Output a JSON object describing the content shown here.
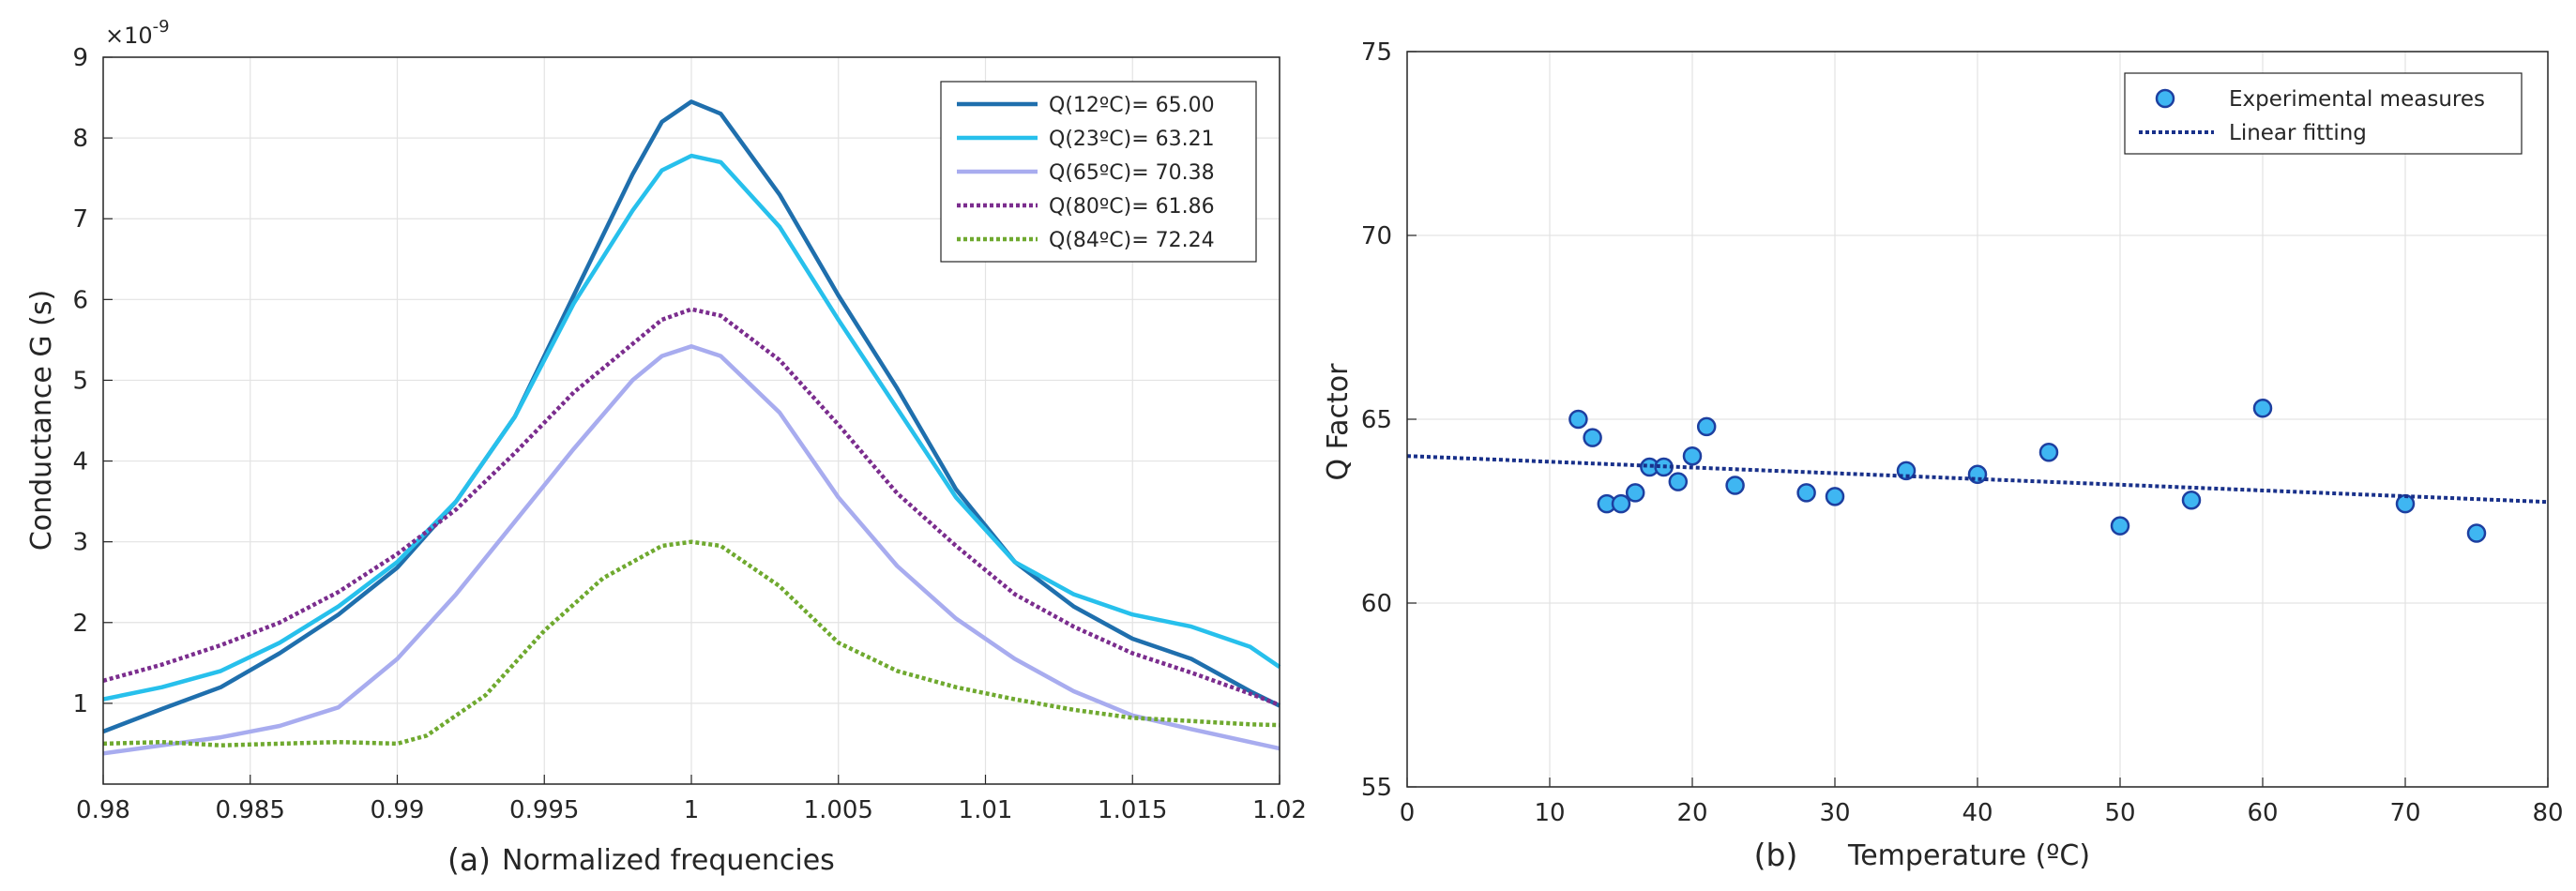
{
  "chart_data": [
    {
      "type": "line",
      "panel_label": "(a)",
      "xlabel": "Normalized frequencies",
      "ylabel": "Conductance G  (s)",
      "y_multiplier_base": "×10",
      "y_multiplier_exp": "-9",
      "xlim": [
        0.98,
        1.02
      ],
      "ylim": [
        0,
        9
      ],
      "xticks": [
        0.98,
        0.985,
        0.99,
        0.995,
        1,
        1.005,
        1.01,
        1.015,
        1.02
      ],
      "xtick_labels": [
        "0.98",
        "0.985",
        "0.99",
        "0.995",
        "1",
        "1.005",
        "1.01",
        "1.015",
        "1.02"
      ],
      "yticks": [
        1,
        2,
        3,
        4,
        5,
        6,
        7,
        8,
        9
      ],
      "ytick_labels": [
        "1",
        "2",
        "3",
        "4",
        "5",
        "6",
        "7",
        "8",
        "9"
      ],
      "grid": true,
      "legend_position": "top-right",
      "series": [
        {
          "name": "Q(12ºC)= 65.00",
          "color": "#1f6fad",
          "style": "solid",
          "points": [
            [
              0.98,
              0.65
            ],
            [
              0.982,
              0.93
            ],
            [
              0.984,
              1.2
            ],
            [
              0.986,
              1.62
            ],
            [
              0.988,
              2.1
            ],
            [
              0.99,
              2.68
            ],
            [
              0.992,
              3.5
            ],
            [
              0.994,
              4.55
            ],
            [
              0.996,
              6.05
            ],
            [
              0.998,
              7.55
            ],
            [
              0.999,
              8.2
            ],
            [
              1.0,
              8.45
            ],
            [
              1.001,
              8.3
            ],
            [
              1.003,
              7.3
            ],
            [
              1.005,
              6.05
            ],
            [
              1.007,
              4.9
            ],
            [
              1.009,
              3.65
            ],
            [
              1.011,
              2.75
            ],
            [
              1.013,
              2.2
            ],
            [
              1.015,
              1.8
            ],
            [
              1.017,
              1.55
            ],
            [
              1.019,
              1.15
            ],
            [
              1.02,
              0.97
            ]
          ]
        },
        {
          "name": "Q(23ºC)= 63.21",
          "color": "#27c0ec",
          "style": "solid",
          "points": [
            [
              0.98,
              1.05
            ],
            [
              0.982,
              1.2
            ],
            [
              0.984,
              1.4
            ],
            [
              0.986,
              1.75
            ],
            [
              0.988,
              2.2
            ],
            [
              0.99,
              2.75
            ],
            [
              0.992,
              3.5
            ],
            [
              0.994,
              4.55
            ],
            [
              0.996,
              5.95
            ],
            [
              0.998,
              7.1
            ],
            [
              0.999,
              7.6
            ],
            [
              1.0,
              7.78
            ],
            [
              1.001,
              7.7
            ],
            [
              1.003,
              6.9
            ],
            [
              1.005,
              5.75
            ],
            [
              1.007,
              4.65
            ],
            [
              1.009,
              3.55
            ],
            [
              1.011,
              2.75
            ],
            [
              1.013,
              2.35
            ],
            [
              1.015,
              2.1
            ],
            [
              1.017,
              1.95
            ],
            [
              1.019,
              1.7
            ],
            [
              1.02,
              1.45
            ]
          ]
        },
        {
          "name": "Q(65ºC)= 70.38",
          "color": "#a8acef",
          "style": "solid",
          "points": [
            [
              0.98,
              0.38
            ],
            [
              0.982,
              0.48
            ],
            [
              0.984,
              0.58
            ],
            [
              0.986,
              0.72
            ],
            [
              0.988,
              0.95
            ],
            [
              0.99,
              1.55
            ],
            [
              0.992,
              2.35
            ],
            [
              0.994,
              3.25
            ],
            [
              0.996,
              4.15
            ],
            [
              0.998,
              5.0
            ],
            [
              0.999,
              5.3
            ],
            [
              1.0,
              5.42
            ],
            [
              1.001,
              5.3
            ],
            [
              1.003,
              4.6
            ],
            [
              1.005,
              3.55
            ],
            [
              1.007,
              2.7
            ],
            [
              1.009,
              2.05
            ],
            [
              1.011,
              1.55
            ],
            [
              1.013,
              1.15
            ],
            [
              1.015,
              0.85
            ],
            [
              1.017,
              0.68
            ],
            [
              1.019,
              0.52
            ],
            [
              1.02,
              0.44
            ]
          ]
        },
        {
          "name": "Q(80ºC)= 61.86",
          "color": "#7b2d8e",
          "style": "dotted",
          "points": [
            [
              0.98,
              1.28
            ],
            [
              0.982,
              1.48
            ],
            [
              0.984,
              1.72
            ],
            [
              0.986,
              2.0
            ],
            [
              0.988,
              2.38
            ],
            [
              0.99,
              2.85
            ],
            [
              0.992,
              3.4
            ],
            [
              0.994,
              4.1
            ],
            [
              0.996,
              4.85
            ],
            [
              0.998,
              5.45
            ],
            [
              0.999,
              5.75
            ],
            [
              1.0,
              5.88
            ],
            [
              1.001,
              5.8
            ],
            [
              1.003,
              5.25
            ],
            [
              1.005,
              4.45
            ],
            [
              1.007,
              3.6
            ],
            [
              1.009,
              2.95
            ],
            [
              1.011,
              2.35
            ],
            [
              1.013,
              1.95
            ],
            [
              1.015,
              1.62
            ],
            [
              1.017,
              1.38
            ],
            [
              1.019,
              1.12
            ],
            [
              1.02,
              0.98
            ]
          ]
        },
        {
          "name": "Q(84ºC)= 72.24",
          "color": "#6fa92f",
          "style": "dotted",
          "points": [
            [
              0.98,
              0.5
            ],
            [
              0.982,
              0.52
            ],
            [
              0.984,
              0.48
            ],
            [
              0.986,
              0.5
            ],
            [
              0.988,
              0.52
            ],
            [
              0.99,
              0.5
            ],
            [
              0.991,
              0.6
            ],
            [
              0.993,
              1.1
            ],
            [
              0.995,
              1.9
            ],
            [
              0.997,
              2.55
            ],
            [
              0.999,
              2.95
            ],
            [
              1.0,
              3.0
            ],
            [
              1.001,
              2.95
            ],
            [
              1.003,
              2.45
            ],
            [
              1.005,
              1.75
            ],
            [
              1.007,
              1.4
            ],
            [
              1.009,
              1.2
            ],
            [
              1.011,
              1.05
            ],
            [
              1.013,
              0.92
            ],
            [
              1.015,
              0.82
            ],
            [
              1.017,
              0.78
            ],
            [
              1.019,
              0.74
            ],
            [
              1.02,
              0.73
            ]
          ]
        }
      ]
    },
    {
      "type": "scatter",
      "panel_label": "(b)",
      "xlabel": "Temperature (ºC)",
      "ylabel": "Q Factor",
      "xlim": [
        0,
        80
      ],
      "ylim": [
        55,
        75
      ],
      "xticks": [
        0,
        10,
        20,
        30,
        40,
        50,
        60,
        70,
        80
      ],
      "xtick_labels": [
        "0",
        "10",
        "20",
        "30",
        "40",
        "50",
        "60",
        "70",
        "80"
      ],
      "yticks": [
        55,
        60,
        65,
        70,
        75
      ],
      "ytick_labels": [
        "55",
        "60",
        "65",
        "70",
        "75"
      ],
      "grid": true,
      "legend_position": "top-right",
      "series": [
        {
          "name": "Experimental measures",
          "color": "#3fb6f2",
          "edge_color": "#1d3fa0",
          "style": "markers",
          "points": [
            [
              12,
              65.0
            ],
            [
              13,
              64.5
            ],
            [
              14,
              62.7
            ],
            [
              15,
              62.7
            ],
            [
              16,
              63.0
            ],
            [
              17,
              63.7
            ],
            [
              18,
              63.7
            ],
            [
              19,
              63.3
            ],
            [
              20,
              64.0
            ],
            [
              21,
              64.8
            ],
            [
              23,
              63.2
            ],
            [
              28,
              63.0
            ],
            [
              30,
              62.9
            ],
            [
              35,
              63.6
            ],
            [
              40,
              63.5
            ],
            [
              45,
              64.1
            ],
            [
              50,
              62.1
            ],
            [
              55,
              62.8
            ],
            [
              60,
              65.3
            ],
            [
              70,
              62.7
            ],
            [
              75,
              61.9
            ]
          ]
        },
        {
          "name": "Linear fitting",
          "color": "#18308a",
          "style": "dotted",
          "points": [
            [
              0,
              64.0
            ],
            [
              80,
              62.75
            ]
          ]
        }
      ]
    }
  ]
}
